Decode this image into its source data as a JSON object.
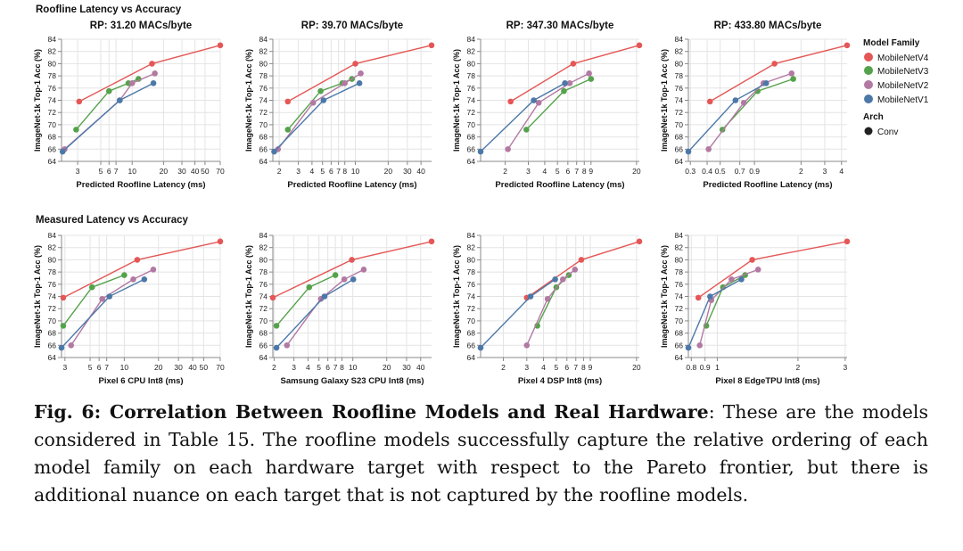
{
  "section_titles": {
    "top": "Roofline Latency vs Accuracy",
    "bottom": "Measured Latency vs Accuracy"
  },
  "y_axis_label": "ImageNet-1k Top-1 Acc (%)",
  "legend": {
    "family_title": "Model Family",
    "families": [
      {
        "name": "MobileNetV4",
        "color": "#e45756"
      },
      {
        "name": "MobileNetV3",
        "color": "#54a24b"
      },
      {
        "name": "MobileNetV2",
        "color": "#b279a2"
      },
      {
        "name": "MobileNetV1",
        "color": "#4c78a8"
      }
    ],
    "arch_title": "Arch",
    "arch_items": [
      {
        "name": "Conv",
        "color": "#222222"
      }
    ]
  },
  "caption": {
    "label": "Fig. 6: Correlation Between Roofline Models and Real Hardware",
    "text": ": These are the models considered in Table 15. The roofline models successfully capture the relative ordering of each model family on each hardware target with respect to the Pareto frontier, but there is additional nuance on each target that is not captured by the roofline models."
  },
  "chart_data": [
    {
      "type": "line",
      "title": "RP: 31.20 MACs/byte",
      "xlabel": "Predicted Roofline Latency (ms)",
      "ylabel": "ImageNet-1k Top-1 Acc (%)",
      "xscale": "log",
      "xlim": [
        2.1,
        70
      ],
      "ylim": [
        64,
        84
      ],
      "xticks": [
        3,
        5,
        6,
        7,
        10,
        20,
        30,
        40,
        50,
        70
      ],
      "xtick_labels": [
        "3",
        "5",
        "6",
        "7",
        "10",
        "20",
        "30",
        "40",
        "50",
        "70"
      ],
      "yticks": [
        64,
        66,
        68,
        70,
        72,
        74,
        76,
        78,
        80,
        82,
        84
      ],
      "series": [
        {
          "name": "MobileNetV4",
          "points": [
            [
              3.1,
              73.8
            ],
            [
              15.5,
              80.0
            ],
            [
              70,
              83.0
            ]
          ]
        },
        {
          "name": "MobileNetV3",
          "points": [
            [
              2.9,
              69.2
            ],
            [
              6.0,
              75.5
            ],
            [
              9.2,
              76.8
            ],
            [
              11.5,
              77.5
            ]
          ]
        },
        {
          "name": "MobileNetV2",
          "points": [
            [
              2.25,
              66.0
            ],
            [
              7.6,
              74.0
            ],
            [
              10.0,
              76.8
            ],
            [
              16.5,
              78.4
            ]
          ]
        },
        {
          "name": "MobileNetV1",
          "points": [
            [
              2.15,
              65.6
            ],
            [
              7.6,
              74.0
            ],
            [
              16.0,
              76.8
            ]
          ]
        }
      ]
    },
    {
      "type": "line",
      "title": "RP: 39.70 MACs/byte",
      "xlabel": "Predicted Roofline Latency (ms)",
      "ylabel": "ImageNet-1k Top-1 Acc (%)",
      "xscale": "log",
      "xlim": [
        1.75,
        50
      ],
      "ylim": [
        64,
        84
      ],
      "xticks": [
        2,
        3,
        4,
        5,
        6,
        7,
        8,
        10,
        20,
        30,
        40
      ],
      "xtick_labels": [
        "2",
        "3",
        "4",
        "5",
        "6",
        "7",
        "8",
        "10",
        "20",
        "30",
        "40"
      ],
      "yticks": [
        64,
        66,
        68,
        70,
        72,
        74,
        76,
        78,
        80,
        82,
        84
      ],
      "series": [
        {
          "name": "MobileNetV4",
          "points": [
            [
              2.4,
              73.8
            ],
            [
              10.0,
              80.0
            ],
            [
              50,
              83.0
            ]
          ]
        },
        {
          "name": "MobileNetV3",
          "points": [
            [
              2.4,
              69.2
            ],
            [
              4.8,
              75.5
            ],
            [
              7.6,
              76.8
            ],
            [
              9.3,
              77.5
            ]
          ]
        },
        {
          "name": "MobileNetV2",
          "points": [
            [
              1.95,
              66.0
            ],
            [
              4.1,
              73.6
            ],
            [
              8.0,
              76.8
            ],
            [
              11.2,
              78.4
            ]
          ]
        },
        {
          "name": "MobileNetV1",
          "points": [
            [
              1.8,
              65.6
            ],
            [
              5.1,
              74.0
            ],
            [
              10.9,
              76.8
            ]
          ]
        }
      ]
    },
    {
      "type": "line",
      "title": "RP: 347.30 MACs/byte",
      "xlabel": "Predicted Roofline Latency (ms)",
      "ylabel": "ImageNet-1k Top-1 Acc (%)",
      "xscale": "log",
      "xlim": [
        1.3,
        21
      ],
      "ylim": [
        64,
        84
      ],
      "xticks": [
        2,
        3,
        4,
        5,
        6,
        7,
        8,
        9,
        20
      ],
      "xtick_labels": [
        "2",
        "3",
        "4",
        "5",
        "6",
        "7",
        "8",
        "9",
        "20"
      ],
      "yticks": [
        64,
        66,
        68,
        70,
        72,
        74,
        76,
        78,
        80,
        82,
        84
      ],
      "series": [
        {
          "name": "MobileNetV4",
          "points": [
            [
              2.2,
              73.8
            ],
            [
              6.6,
              80.0
            ],
            [
              21,
              83.0
            ]
          ]
        },
        {
          "name": "MobileNetV3",
          "points": [
            [
              2.9,
              69.2
            ],
            [
              5.6,
              75.5
            ],
            [
              9.0,
              77.5
            ]
          ]
        },
        {
          "name": "MobileNetV2",
          "points": [
            [
              2.1,
              66.0
            ],
            [
              3.6,
              73.6
            ],
            [
              6.2,
              76.8
            ],
            [
              8.7,
              78.4
            ]
          ]
        },
        {
          "name": "MobileNetV1",
          "points": [
            [
              1.3,
              65.6
            ],
            [
              3.3,
              74.0
            ],
            [
              5.7,
              76.8
            ]
          ]
        }
      ]
    },
    {
      "type": "line",
      "title": "RP: 433.80 MACs/byte",
      "xlabel": "Predicted Roofline Latency (ms)",
      "ylabel": "ImageNet-1k Top-1 Acc (%)",
      "xscale": "log",
      "xlim": [
        0.29,
        4.4
      ],
      "ylim": [
        64,
        84
      ],
      "xticks": [
        0.3,
        0.4,
        0.5,
        0.7,
        0.9,
        2,
        3,
        4
      ],
      "xtick_labels": [
        "0.3",
        "0.4",
        "0.5",
        "0.7",
        "0.9",
        "2",
        "3",
        "4"
      ],
      "yticks": [
        64,
        66,
        68,
        70,
        72,
        74,
        76,
        78,
        80,
        82,
        84
      ],
      "series": [
        {
          "name": "MobileNetV4",
          "points": [
            [
              0.42,
              73.8
            ],
            [
              1.27,
              80.0
            ],
            [
              4.4,
              83.0
            ]
          ]
        },
        {
          "name": "MobileNetV3",
          "points": [
            [
              0.52,
              69.2
            ],
            [
              0.95,
              75.5
            ],
            [
              1.75,
              77.5
            ]
          ]
        },
        {
          "name": "MobileNetV2",
          "points": [
            [
              0.41,
              66.0
            ],
            [
              0.75,
              73.6
            ],
            [
              1.05,
              76.8
            ],
            [
              1.7,
              78.4
            ]
          ]
        },
        {
          "name": "MobileNetV1",
          "points": [
            [
              0.29,
              65.6
            ],
            [
              0.65,
              74.0
            ],
            [
              1.1,
              76.8
            ]
          ]
        }
      ]
    },
    {
      "type": "line",
      "title": "",
      "xlabel": "Pixel 6 CPU Int8 (ms)",
      "ylabel": "ImageNet-1k Top-1 Acc (%)",
      "xscale": "log",
      "xlim": [
        2.8,
        70
      ],
      "ylim": [
        64,
        84
      ],
      "xticks": [
        3,
        5,
        6,
        7,
        10,
        20,
        30,
        40,
        50,
        70
      ],
      "xtick_labels": [
        "3",
        "5",
        "6",
        "7",
        "10",
        "20",
        "30",
        "40",
        "50",
        "70"
      ],
      "yticks": [
        64,
        66,
        68,
        70,
        72,
        74,
        76,
        78,
        80,
        82,
        84
      ],
      "series": [
        {
          "name": "MobileNetV4",
          "points": [
            [
              2.9,
              73.8
            ],
            [
              13.0,
              80.0
            ],
            [
              70,
              83.0
            ]
          ]
        },
        {
          "name": "MobileNetV3",
          "points": [
            [
              2.9,
              69.2
            ],
            [
              5.2,
              75.5
            ],
            [
              10.0,
              77.5
            ]
          ]
        },
        {
          "name": "MobileNetV2",
          "points": [
            [
              3.4,
              66.0
            ],
            [
              6.4,
              73.6
            ],
            [
              12.0,
              76.8
            ],
            [
              18.0,
              78.4
            ]
          ]
        },
        {
          "name": "MobileNetV1",
          "points": [
            [
              2.8,
              65.6
            ],
            [
              7.4,
              74.0
            ],
            [
              15.0,
              76.8
            ]
          ]
        }
      ]
    },
    {
      "type": "line",
      "title": "",
      "xlabel": "Samsung Galaxy S23 CPU Int8 (ms)",
      "ylabel": "ImageNet-1k Top-1 Acc (%)",
      "xscale": "log",
      "xlim": [
        1.95,
        50
      ],
      "ylim": [
        64,
        84
      ],
      "xticks": [
        2,
        3,
        4,
        5,
        6,
        7,
        8,
        10,
        20,
        30,
        40
      ],
      "xtick_labels": [
        "2",
        "3",
        "4",
        "5",
        "6",
        "7",
        "8",
        "10",
        "20",
        "30",
        "40"
      ],
      "yticks": [
        64,
        66,
        68,
        70,
        72,
        74,
        76,
        78,
        80,
        82,
        84
      ],
      "series": [
        {
          "name": "MobileNetV4",
          "points": [
            [
              1.95,
              73.8
            ],
            [
              9.8,
              80.0
            ],
            [
              50,
              83.0
            ]
          ]
        },
        {
          "name": "MobileNetV3",
          "points": [
            [
              2.1,
              69.2
            ],
            [
              4.1,
              75.5
            ],
            [
              7.0,
              77.5
            ]
          ]
        },
        {
          "name": "MobileNetV2",
          "points": [
            [
              2.6,
              66.0
            ],
            [
              5.2,
              73.6
            ],
            [
              8.4,
              76.8
            ],
            [
              12.5,
              78.4
            ]
          ]
        },
        {
          "name": "MobileNetV1",
          "points": [
            [
              2.1,
              65.6
            ],
            [
              5.6,
              74.0
            ],
            [
              10.1,
              76.8
            ]
          ]
        }
      ]
    },
    {
      "type": "line",
      "title": "",
      "xlabel": "Pixel 4 DSP Int8 (ms)",
      "ylabel": "ImageNet-1k Top-1 Acc (%)",
      "xscale": "log",
      "xlim": [
        1.35,
        21
      ],
      "ylim": [
        64,
        84
      ],
      "xticks": [
        2,
        3,
        4,
        5,
        6,
        7,
        8,
        9,
        20
      ],
      "xtick_labels": [
        "2",
        "3",
        "4",
        "5",
        "6",
        "7",
        "8",
        "9",
        "20"
      ],
      "yticks": [
        64,
        66,
        68,
        70,
        72,
        74,
        76,
        78,
        80,
        82,
        84
      ],
      "series": [
        {
          "name": "MobileNetV4",
          "points": [
            [
              3.0,
              73.8
            ],
            [
              7.7,
              80.0
            ],
            [
              21,
              83.0
            ]
          ]
        },
        {
          "name": "MobileNetV3",
          "points": [
            [
              3.6,
              69.2
            ],
            [
              5.0,
              75.5
            ],
            [
              6.2,
              77.5
            ]
          ]
        },
        {
          "name": "MobileNetV2",
          "points": [
            [
              3.0,
              66.0
            ],
            [
              4.3,
              73.6
            ],
            [
              5.6,
              76.8
            ],
            [
              6.9,
              78.4
            ]
          ]
        },
        {
          "name": "MobileNetV1",
          "points": [
            [
              1.35,
              65.6
            ],
            [
              3.2,
              74.0
            ],
            [
              4.9,
              76.8
            ]
          ]
        }
      ]
    },
    {
      "type": "line",
      "title": "",
      "xlabel": "Pixel 8 EdgeTPU Int8 (ms)",
      "ylabel": "ImageNet-1k Top-1 Acc (%)",
      "xscale": "log",
      "xlim": [
        0.78,
        3.05
      ],
      "ylim": [
        64,
        84
      ],
      "xticks": [
        0.8,
        0.9,
        1,
        2,
        3
      ],
      "xtick_labels": [
        "0.8",
        "0.9",
        "1",
        "2",
        "3"
      ],
      "yticks": [
        64,
        66,
        68,
        70,
        72,
        74,
        76,
        78,
        80,
        82,
        84
      ],
      "series": [
        {
          "name": "MobileNetV4",
          "points": [
            [
              0.85,
              73.8
            ],
            [
              1.35,
              80.0
            ],
            [
              3.05,
              83.0
            ]
          ]
        },
        {
          "name": "MobileNetV3",
          "points": [
            [
              0.91,
              69.2
            ],
            [
              1.05,
              75.5
            ],
            [
              1.27,
              77.5
            ]
          ]
        },
        {
          "name": "MobileNetV2",
          "points": [
            [
              0.86,
              66.0
            ],
            [
              0.95,
              73.4
            ],
            [
              1.13,
              76.8
            ],
            [
              1.42,
              78.4
            ]
          ]
        },
        {
          "name": "MobileNetV1",
          "points": [
            [
              0.78,
              65.6
            ],
            [
              0.94,
              74.0
            ],
            [
              1.23,
              76.8
            ]
          ]
        }
      ]
    }
  ]
}
